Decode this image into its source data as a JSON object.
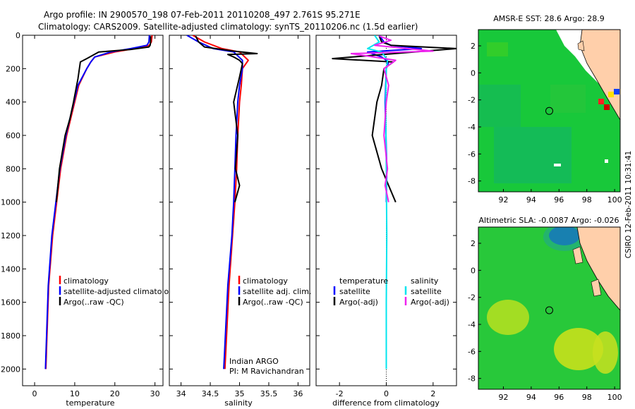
{
  "header": {
    "line1": "Argo profile: IN 2900570_198 07-Feb-2011 20110208_497 2.761S 95.271E",
    "line2": "Climatology: CARS2009. Satellite-adjusted climatology: synTS_20110206.nc (1.5d earlier)"
  },
  "colors": {
    "climatology": "#ff0000",
    "satellite": "#0000ff",
    "argo": "#000000",
    "sat_diff": "#00e5ee",
    "argo_sal_diff": "#ee22ee",
    "land": "#ffcfaa",
    "sea_green": "#18c83a"
  },
  "chart_data": [
    {
      "type": "line",
      "name": "temperature_profile",
      "xlabel": "temperature",
      "ylabel": "",
      "xlim": [
        -3,
        32
      ],
      "ylim": [
        2100,
        0
      ],
      "xticks": [
        0,
        10,
        20,
        30
      ],
      "yticks": [
        0,
        200,
        400,
        600,
        800,
        1000,
        1200,
        1400,
        1600,
        1800,
        2000
      ],
      "series": [
        {
          "name": "climatology",
          "color": "#ff0000",
          "x": [
            29.3,
            29.1,
            28.6,
            25,
            20,
            15,
            14,
            13,
            11,
            10,
            9,
            8,
            6.5,
            5.5,
            4.5,
            3.5,
            2.8
          ],
          "y": [
            0,
            40,
            60,
            80,
            100,
            130,
            160,
            200,
            300,
            400,
            500,
            600,
            800,
            1000,
            1200,
            1500,
            2000
          ]
        },
        {
          "name": "satellite-adjusted climatology",
          "color": "#0000ff",
          "x": [
            28.6,
            28.5,
            28,
            24,
            19,
            15,
            14,
            13,
            10.8,
            9.8,
            8.8,
            7.8,
            6.3,
            5.3,
            4.3,
            3.4,
            2.7
          ],
          "y": [
            0,
            40,
            60,
            80,
            100,
            130,
            160,
            200,
            300,
            400,
            500,
            600,
            800,
            1000,
            1200,
            1500,
            2000
          ]
        },
        {
          "name": "Argo(..raw -QC)",
          "color": "#000000",
          "x": [
            28.9,
            28.9,
            28.8,
            28.5,
            24,
            16,
            13,
            12.2,
            11.4,
            10.8,
            9.7,
            8.8,
            7.6,
            6.2,
            5.4
          ],
          "y": [
            5,
            40,
            60,
            70,
            85,
            100,
            140,
            150,
            160,
            260,
            400,
            500,
            600,
            800,
            1000
          ]
        }
      ],
      "legend": [
        "climatology",
        "satellite-adjusted climatology",
        "Argo(..raw -QC)"
      ]
    },
    {
      "type": "line",
      "name": "salinity_profile",
      "xlabel": "salinity",
      "ylabel": "",
      "xlim": [
        33.8,
        36.2
      ],
      "ylim": [
        2100,
        0
      ],
      "xticks": [
        34,
        34.5,
        35,
        35.5,
        36
      ],
      "series": [
        {
          "name": "climatology",
          "color": "#ff0000",
          "x": [
            34.2,
            34.4,
            34.7,
            35.0,
            35.15,
            35.05,
            35.03,
            35.0,
            34.97,
            34.95,
            34.92,
            34.88,
            34.82,
            34.75
          ],
          "y": [
            0,
            40,
            80,
            100,
            150,
            200,
            300,
            400,
            600,
            800,
            1000,
            1200,
            1500,
            2000
          ]
        },
        {
          "name": "satellite adj. clim.",
          "color": "#0000ff",
          "x": [
            34.1,
            34.3,
            34.55,
            34.9,
            35.05,
            35.05,
            35.0,
            34.97,
            34.94,
            34.92,
            34.9,
            34.87,
            34.8,
            34.73
          ],
          "y": [
            0,
            40,
            80,
            100,
            150,
            200,
            300,
            400,
            600,
            800,
            1000,
            1200,
            1500,
            2000
          ]
        },
        {
          "name": "Argo(..raw -QC)",
          "color": "#000000",
          "x": [
            34.25,
            34.3,
            34.4,
            34.9,
            35.3,
            34.8,
            34.9,
            35.0,
            35.05,
            35.0,
            34.9,
            34.97,
            34.93,
            35.0,
            34.92
          ],
          "y": [
            5,
            40,
            70,
            95,
            110,
            115,
            130,
            150,
            170,
            250,
            400,
            600,
            800,
            900,
            1000
          ]
        }
      ],
      "legend": [
        "climatology",
        "satellite adj. clim.",
        "Argo(..raw -QC)"
      ],
      "annotation": [
        "Indian ARGO",
        "PI: M Ravichandran"
      ]
    },
    {
      "type": "line",
      "name": "difference_from_climatology",
      "xlabel": "difference from climatology",
      "ylabel": "",
      "xlim": [
        -3,
        3
      ],
      "ylim": [
        2100,
        0
      ],
      "xticks": [
        -2,
        0,
        2
      ],
      "series": [
        {
          "name": "temperature satellite",
          "color": "#0000ff",
          "x": [
            -0.3,
            -0.1,
            0.2,
            1.5,
            -0.8,
            -0.2,
            0.1,
            0.0,
            -0.05,
            0.02,
            0.0
          ],
          "y": [
            0,
            40,
            60,
            80,
            100,
            130,
            160,
            200,
            400,
            800,
            1000
          ]
        },
        {
          "name": "temperature Argo(-adj)",
          "color": "#000000",
          "x": [
            -0.3,
            -0.2,
            0.2,
            3.0,
            -2.3,
            0.3,
            -0.1,
            -0.2,
            -0.4,
            -0.6,
            -0.2,
            0.1,
            0.4
          ],
          "y": [
            5,
            40,
            60,
            80,
            140,
            160,
            200,
            300,
            400,
            600,
            800,
            900,
            1000
          ]
        },
        {
          "name": "salinity satellite",
          "color": "#00e5ee",
          "x": [
            -0.5,
            -0.3,
            -0.8,
            -0.2,
            0.05,
            0.0,
            -0.03,
            0.0,
            0.02,
            0.0,
            0.0
          ],
          "y": [
            0,
            40,
            80,
            100,
            150,
            200,
            400,
            800,
            1200,
            1600,
            2000
          ]
        },
        {
          "name": "salinity Argo(-adj)",
          "color": "#ee22ee",
          "x": [
            -0.3,
            0.2,
            -0.5,
            2.0,
            -1.5,
            0.4,
            -0.1,
            0.1,
            0.0,
            -0.1,
            0.05,
            -0.05,
            0.1
          ],
          "y": [
            5,
            30,
            60,
            95,
            110,
            150,
            200,
            300,
            400,
            600,
            800,
            900,
            1000
          ]
        }
      ],
      "legend_headers": [
        "temperature",
        "salinity"
      ],
      "legend": [
        "satellite",
        "Argo(-adj)",
        "satellite",
        "Argo(-adj)"
      ]
    },
    {
      "type": "heatmap",
      "name": "amsr_sst_map",
      "title": "AMSR-E SST: 28.6 Argo: 28.9",
      "xlim": [
        90.2,
        100.4
      ],
      "ylim": [
        -8.8,
        3.2
      ],
      "xticks": [
        92,
        94,
        96,
        98,
        100
      ],
      "yticks": [
        2,
        0,
        -2,
        -4,
        -6,
        -8
      ],
      "argo_position": {
        "lon": 95.27,
        "lat": -2.76
      }
    },
    {
      "type": "heatmap",
      "name": "altimetric_sla_map",
      "title": "Altimetric SLA: -0.0087 Argo: -0.026",
      "xlim": [
        90.2,
        100.4
      ],
      "ylim": [
        -8.8,
        3.2
      ],
      "xticks": [
        92,
        94,
        96,
        98,
        100
      ],
      "yticks": [
        2,
        0,
        -2,
        -4,
        -6,
        -8
      ],
      "argo_position": {
        "lon": 95.27,
        "lat": -2.76
      }
    }
  ],
  "side_label": "CSIRO 12-Feb-2011 10:31:41"
}
